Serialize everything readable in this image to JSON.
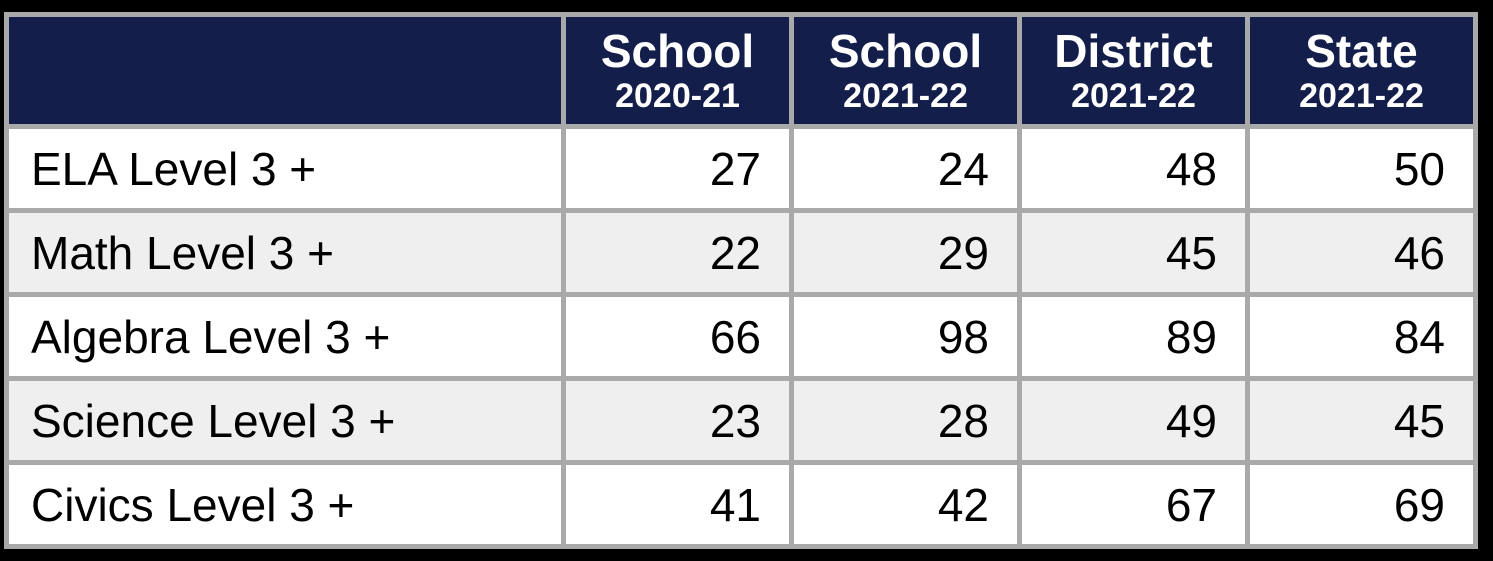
{
  "chart_data": {
    "type": "table",
    "column_headers": [
      {
        "title": "",
        "year": ""
      },
      {
        "title": "School",
        "year": "2020-21"
      },
      {
        "title": "School",
        "year": "2021-22"
      },
      {
        "title": "District",
        "year": "2021-22"
      },
      {
        "title": "State",
        "year": "2021-22"
      }
    ],
    "rows": [
      {
        "label": "ELA Level 3 +",
        "values": [
          27,
          24,
          48,
          50
        ]
      },
      {
        "label": "Math Level 3 +",
        "values": [
          22,
          29,
          45,
          46
        ]
      },
      {
        "label": "Algebra Level 3 +",
        "values": [
          66,
          98,
          89,
          84
        ]
      },
      {
        "label": "Science Level 3 +",
        "values": [
          23,
          28,
          49,
          45
        ]
      },
      {
        "label": "Civics Level 3 +",
        "values": [
          41,
          42,
          67,
          69
        ]
      }
    ],
    "layout": {
      "grid": "on",
      "alternating_rows": true,
      "header_lines": 2
    },
    "colors": {
      "header_bg": "#141e4b",
      "header_text": "#ffffff",
      "row_bg": "#ffffff",
      "row_bg_alt": "#efefef",
      "grid_border": "#a9a9a9",
      "outer_background": "#000000",
      "cell_text": "#000000"
    }
  }
}
